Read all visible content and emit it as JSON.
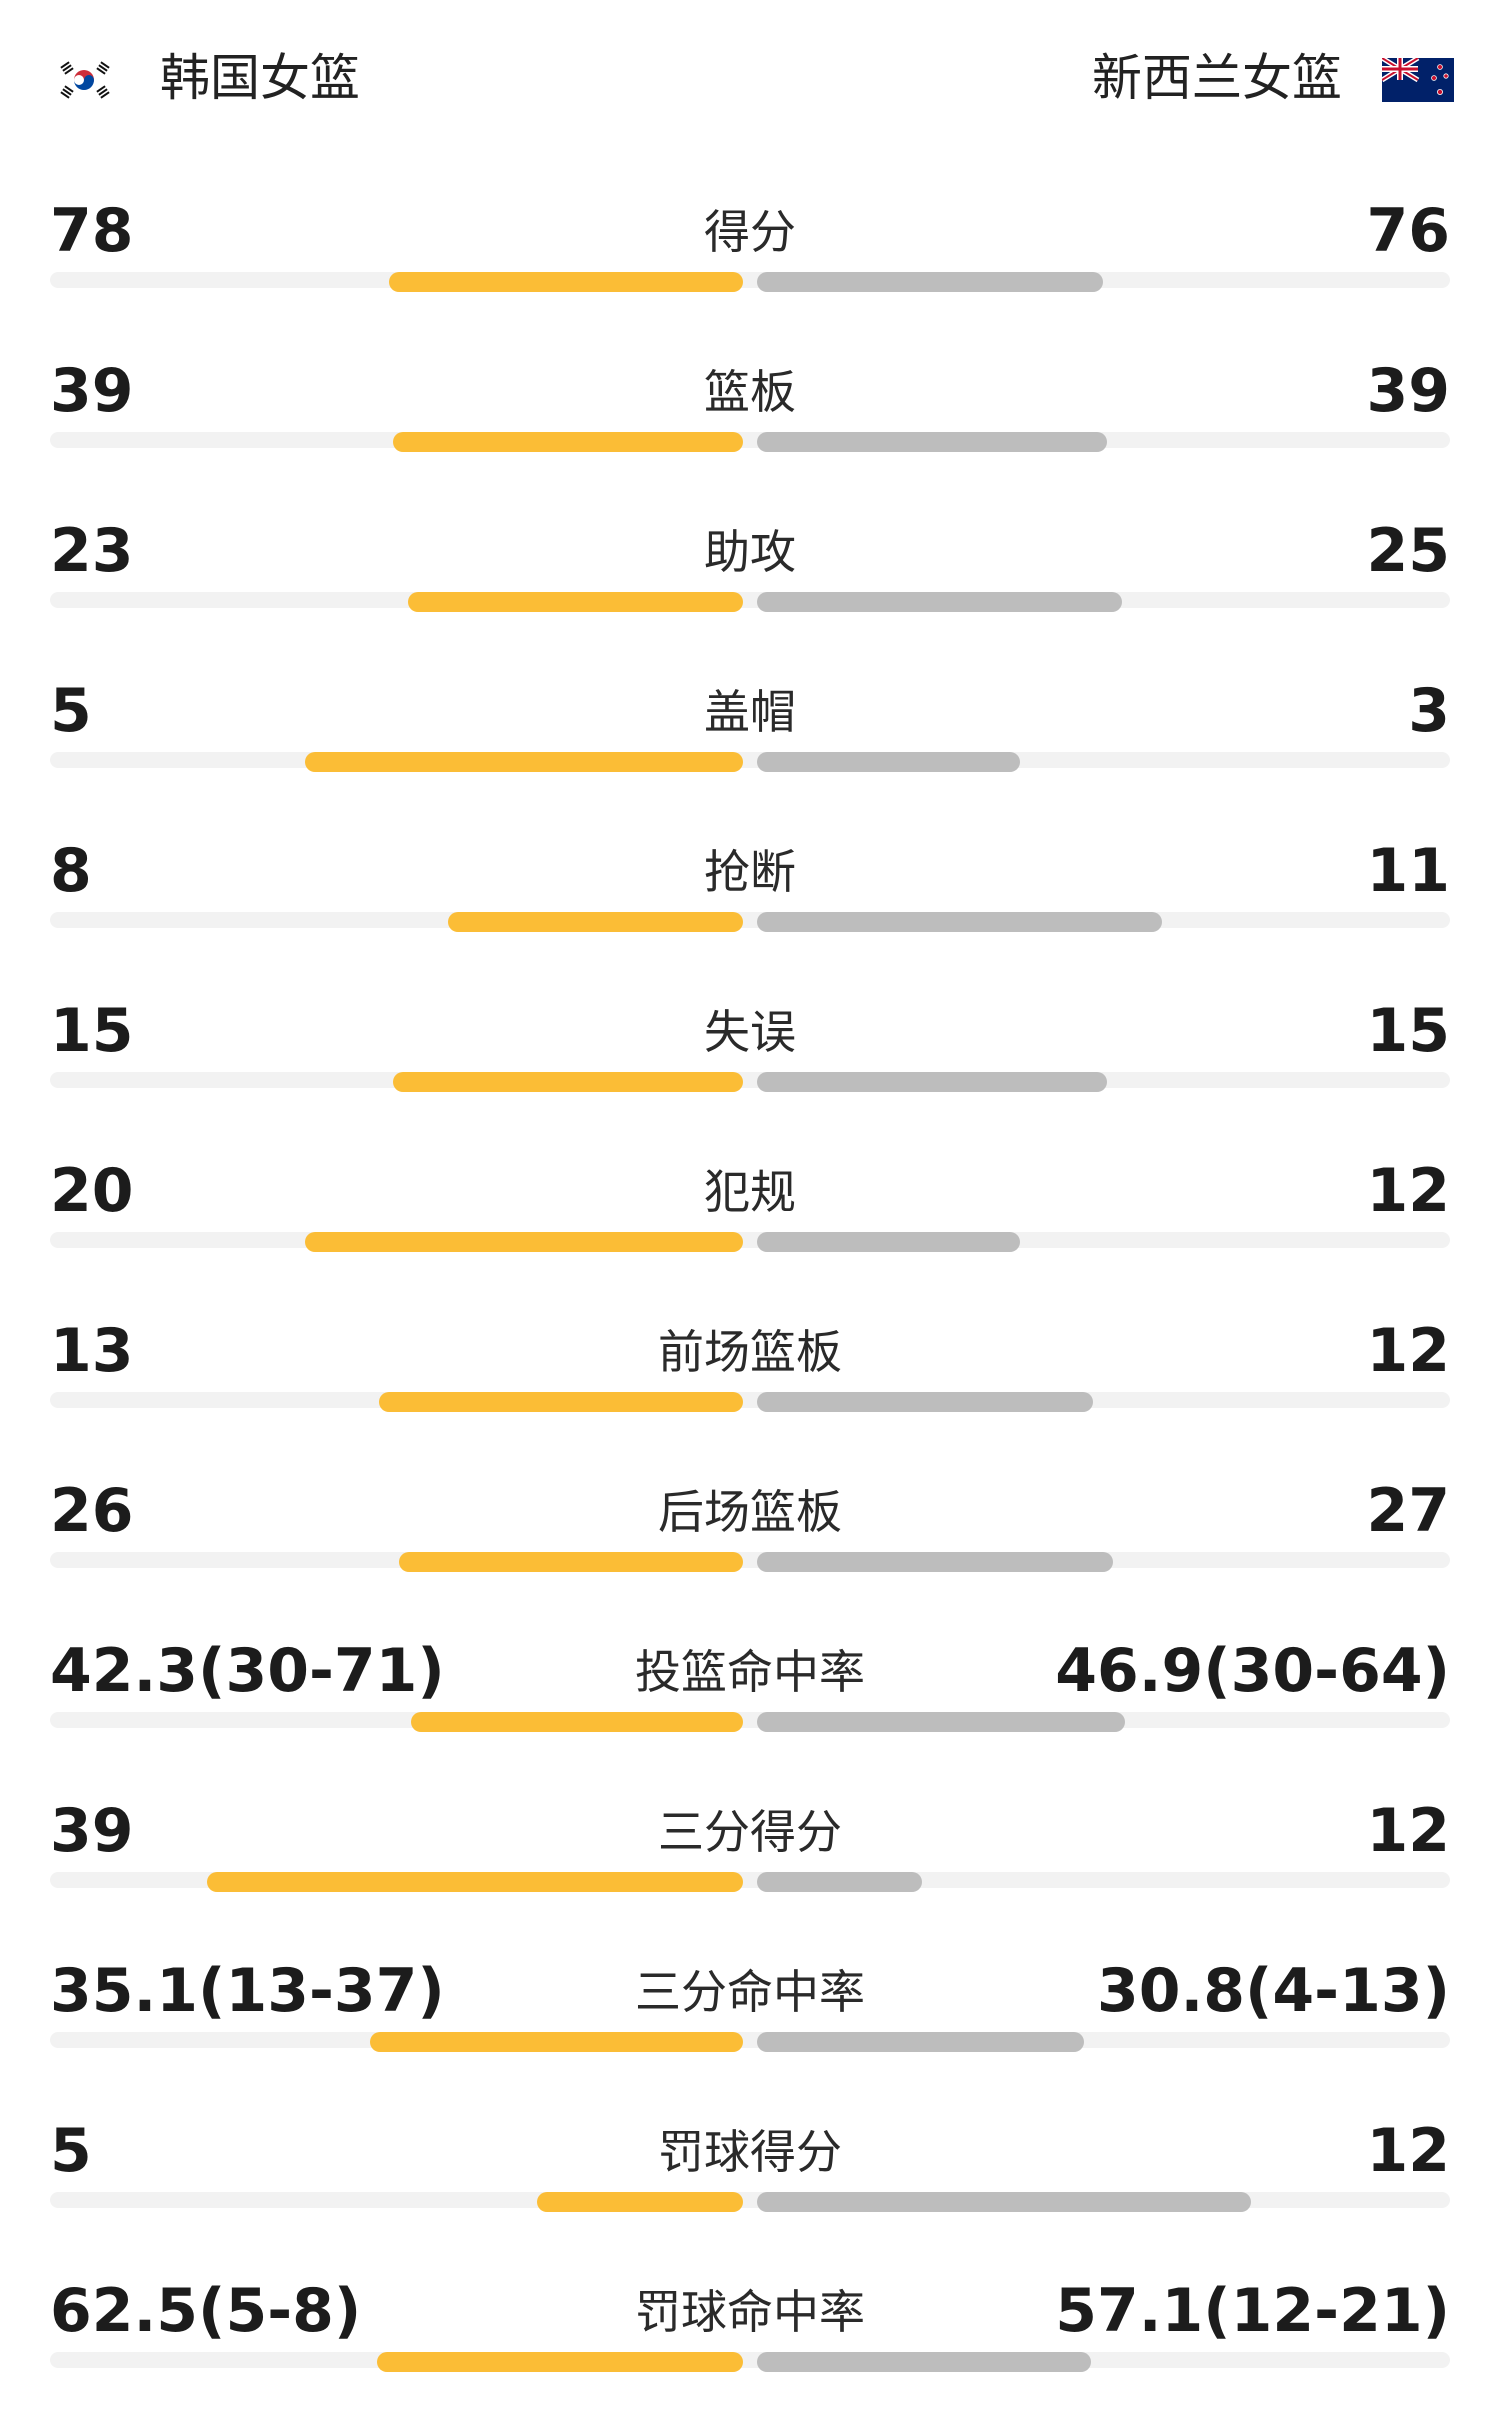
{
  "teams": {
    "home": {
      "name": "韩国女篮",
      "flag": "south-korea-flag-icon"
    },
    "away": {
      "name": "新西兰女篮",
      "flag": "new-zealand-flag-icon"
    }
  },
  "colors": {
    "home_bar": "#fbbd36",
    "away_bar": "#bdbdbd",
    "track": "#f2f2f2"
  },
  "stats": [
    {
      "label": "得分",
      "home": "78",
      "away": "76",
      "home_share": 0.506,
      "away_share": 0.494
    },
    {
      "label": "篮板",
      "home": "39",
      "away": "39",
      "home_share": 0.5,
      "away_share": 0.5
    },
    {
      "label": "助攻",
      "home": "23",
      "away": "25",
      "home_share": 0.479,
      "away_share": 0.521
    },
    {
      "label": "盖帽",
      "home": "5",
      "away": "3",
      "home_share": 0.625,
      "away_share": 0.375
    },
    {
      "label": "抢断",
      "home": "8",
      "away": "11",
      "home_share": 0.421,
      "away_share": 0.579
    },
    {
      "label": "失误",
      "home": "15",
      "away": "15",
      "home_share": 0.5,
      "away_share": 0.5
    },
    {
      "label": "犯规",
      "home": "20",
      "away": "12",
      "home_share": 0.625,
      "away_share": 0.375
    },
    {
      "label": "前场篮板",
      "home": "13",
      "away": "12",
      "home_share": 0.52,
      "away_share": 0.48
    },
    {
      "label": "后场篮板",
      "home": "26",
      "away": "27",
      "home_share": 0.491,
      "away_share": 0.509
    },
    {
      "label": "投篮命中率",
      "home": "42.3(30-71)",
      "away": "46.9(30-64)",
      "home_share": 0.474,
      "away_share": 0.526
    },
    {
      "label": "三分得分",
      "home": "39",
      "away": "12",
      "home_share": 0.765,
      "away_share": 0.235
    },
    {
      "label": "三分命中率",
      "home": "35.1(13-37)",
      "away": "30.8(4-13)",
      "home_share": 0.533,
      "away_share": 0.467
    },
    {
      "label": "罚球得分",
      "home": "5",
      "away": "12",
      "home_share": 0.294,
      "away_share": 0.706
    },
    {
      "label": "罚球命中率",
      "home": "62.5(5-8)",
      "away": "57.1(12-21)",
      "home_share": 0.523,
      "away_share": 0.477
    }
  ]
}
